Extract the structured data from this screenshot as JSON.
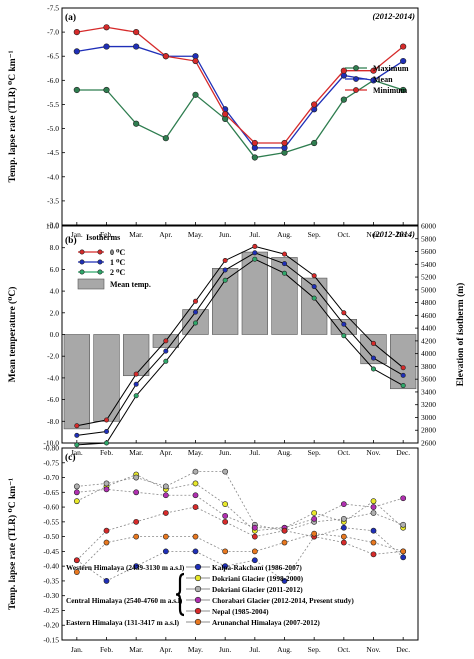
{
  "chart_data": [
    {
      "type": "line",
      "panel_label": "(a)",
      "period": "(2012-2014)",
      "ylabel": "Temp. lapse rate (TLR) ⁰C km⁻¹",
      "ylim": [
        -7.5,
        -3.0
      ],
      "inverted": true,
      "yticks": [
        "-7.5",
        "-7.0",
        "-6.5",
        "-6.0",
        "-5.5",
        "-5.0",
        "-4.5",
        "-4.0",
        "-3.5",
        "-3.0"
      ],
      "categories": [
        "Jan.",
        "Feb.",
        "Mar.",
        "Apr.",
        "May.",
        "Jun.",
        "Jul.",
        "Aug.",
        "Sep.",
        "Oct.",
        "Nov.",
        "Dec."
      ],
      "series": [
        {
          "name": "Maximum",
          "color": "#2e7d4f",
          "values": [
            -5.8,
            -5.8,
            -5.1,
            -4.8,
            -5.7,
            -5.2,
            -4.4,
            -4.5,
            -4.7,
            -5.6,
            -6.0,
            -5.8
          ]
        },
        {
          "name": "Mean",
          "color": "#1f2fb8",
          "values": [
            -6.6,
            -6.7,
            -6.7,
            -6.5,
            -6.5,
            -5.4,
            -4.6,
            -4.6,
            -5.4,
            -6.1,
            -6.0,
            -6.4
          ]
        },
        {
          "name": "Minimum",
          "color": "#d62a2a",
          "values": [
            -7.0,
            -7.1,
            -7.0,
            -6.5,
            -6.4,
            -5.3,
            -4.7,
            -4.7,
            -5.5,
            -6.2,
            -6.2,
            -6.7
          ]
        }
      ]
    },
    {
      "type": "bar",
      "panel_label": "(b)",
      "period": "(2012-2014)",
      "ylabel": "Mean temperature (⁰C)",
      "y2label": "Elevation of isotherm (m)",
      "ylim": [
        -10,
        10
      ],
      "yticks": [
        "-10.0",
        "-8.0",
        "-6.0",
        "-4.0",
        "-2.0",
        "0.0",
        "2.0",
        "4.0",
        "6.0",
        "8.0",
        "10.0"
      ],
      "y2lim": [
        2600,
        6000
      ],
      "y2ticks": [
        "2600",
        "2800",
        "3000",
        "3200",
        "3400",
        "3600",
        "3800",
        "4000",
        "4200",
        "4400",
        "4600",
        "4800",
        "5000",
        "5200",
        "5400",
        "5600",
        "5800",
        "6000"
      ],
      "categories": [
        "Jan.",
        "Feb.",
        "Mar.",
        "Apr.",
        "May.",
        "Jun.",
        "Jul.",
        "Aug.",
        "Sep.",
        "Oct.",
        "Nov.",
        "Dec."
      ],
      "legend_title": "Isotherms",
      "bars": {
        "name": "Mean temp.",
        "color": "#a8a8a8",
        "values": [
          -8.7,
          -8.0,
          -3.8,
          -1.2,
          2.3,
          6.1,
          7.6,
          7.1,
          5.2,
          1.4,
          -2.7,
          -5.0
        ]
      },
      "series": [
        {
          "name": "0 ⁰C",
          "color": "#d62a2a",
          "axis": "y2",
          "values": [
            2870,
            2960,
            3680,
            4200,
            4820,
            5460,
            5680,
            5560,
            5220,
            4640,
            4160,
            3780
          ]
        },
        {
          "name": "1 ⁰C",
          "color": "#1f2fb8",
          "axis": "y2",
          "values": [
            2720,
            2780,
            3520,
            4040,
            4650,
            5310,
            5580,
            5410,
            5050,
            4460,
            3930,
            3660
          ]
        },
        {
          "name": "2 ⁰C",
          "color": "#2ea86a",
          "axis": "y2",
          "values": [
            2570,
            2600,
            3340,
            3880,
            4480,
            5150,
            5480,
            5260,
            4870,
            4280,
            3760,
            3500
          ]
        }
      ]
    },
    {
      "type": "line",
      "panel_label": "(c)",
      "ylabel": "Temp. lapse rate (TLR) ⁰C km⁻¹",
      "ylim": [
        -0.8,
        -0.15
      ],
      "inverted": true,
      "yticks": [
        "-0.80",
        "-0.75",
        "-0.70",
        "-0.65",
        "-0.60",
        "-0.55",
        "-0.50",
        "-0.45",
        "-0.40",
        "-0.35",
        "-0.30",
        "-0.25",
        "-0.20",
        "-0.15"
      ],
      "categories": [
        "Jan.",
        "Feb.",
        "Mar.",
        "Apr.",
        "May.",
        "Jun.",
        "Jul.",
        "Aug.",
        "Sep.",
        "Oct.",
        "Nov.",
        "Dec."
      ],
      "group_labels": [
        "Western Himalaya (2439-3130 m a.s.l)",
        "Central Himalaya (2540-4760 m a.s.l)",
        "Eastern Himalaya (131-3417 m a.s.l)"
      ],
      "series": [
        {
          "name": "Kalpa-Rakcham (1986-2007)",
          "color": "#1f2fb8",
          "values": [
            -0.42,
            -0.35,
            -0.4,
            -0.45,
            -0.45,
            -0.4,
            -0.42,
            -0.35,
            -0.5,
            -0.53,
            -0.52,
            -0.43
          ]
        },
        {
          "name": "Dokriani Glacier (1998-2000)",
          "color": "#e8e82a",
          "values": [
            -0.62,
            -0.67,
            -0.71,
            -0.66,
            -0.68,
            -0.61,
            -0.52,
            -0.53,
            -0.58,
            -0.55,
            -0.62,
            -0.53
          ]
        },
        {
          "name": "Dokriani Glacier (2011-2012)",
          "color": "#b0b0b0",
          "values": [
            -0.67,
            -0.68,
            -0.7,
            -0.67,
            -0.72,
            -0.72,
            -0.54,
            -0.52,
            -0.55,
            -0.56,
            -0.58,
            -0.54
          ]
        },
        {
          "name": "Chorabari Glacier (2012-2014, Present study)",
          "color": "#b030b0",
          "values": [
            -0.65,
            -0.66,
            -0.65,
            -0.64,
            -0.64,
            -0.57,
            -0.53,
            -0.53,
            -0.56,
            -0.61,
            -0.6,
            -0.63
          ]
        },
        {
          "name": "Nepal (1985-2004)",
          "color": "#d62a2a",
          "values": [
            -0.42,
            -0.52,
            -0.55,
            -0.58,
            -0.6,
            -0.55,
            -0.5,
            -0.52,
            -0.5,
            -0.48,
            -0.44,
            -0.45
          ]
        },
        {
          "name": "Arunanchal Himalaya (2007-2012)",
          "color": "#e87820",
          "values": [
            -0.38,
            -0.48,
            -0.5,
            -0.5,
            -0.5,
            -0.45,
            -0.45,
            -0.48,
            -0.51,
            -0.5,
            -0.48,
            -0.45
          ]
        }
      ]
    }
  ]
}
